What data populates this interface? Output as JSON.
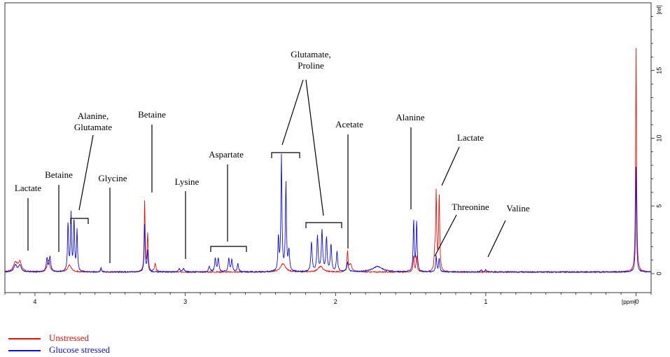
{
  "chart_data": {
    "type": "line",
    "title": "",
    "xlabel": "[ppm]",
    "ylabel": "[rel]",
    "xlim": [
      4.2,
      -0.1
    ],
    "ylim": [
      -1.4,
      20
    ],
    "x_ticks": [
      {
        "value": 4,
        "label": "4"
      },
      {
        "value": 3,
        "label": "3"
      },
      {
        "value": 2,
        "label": "2"
      },
      {
        "value": 1,
        "label": "1"
      },
      {
        "value": 0,
        "label": "-0"
      }
    ],
    "y_ticks": [
      {
        "value": 0,
        "label": "0"
      },
      {
        "value": 5,
        "label": "5"
      },
      {
        "value": 10,
        "label": "10"
      },
      {
        "value": 15,
        "label": "15"
      }
    ],
    "series": [
      {
        "name": "Unstressed",
        "color": "#e01010",
        "peaks": [
          [
            4.13,
            0.7,
            0.015
          ],
          [
            4.1,
            0.7,
            0.012
          ],
          [
            3.91,
            0.9,
            0.01
          ],
          [
            3.77,
            0.5,
            0.015
          ],
          [
            3.56,
            0.3,
            0.004
          ],
          [
            3.27,
            5.3,
            0.0035
          ],
          [
            3.25,
            2.8,
            0.004
          ],
          [
            3.2,
            0.6,
            0.006
          ],
          [
            2.35,
            0.6,
            0.02
          ],
          [
            2.1,
            0.4,
            0.02
          ],
          [
            1.92,
            1.5,
            0.004
          ],
          [
            1.9,
            0.6,
            0.01
          ],
          [
            1.48,
            1.2,
            0.004
          ],
          [
            1.46,
            1.2,
            0.004
          ],
          [
            1.33,
            5.8,
            0.004
          ],
          [
            1.31,
            5.7,
            0.004
          ],
          [
            1.34,
            1.2,
            0.004
          ],
          [
            0.0,
            16.6,
            0.0035
          ]
        ]
      },
      {
        "name": "Glucose stressed",
        "color": "#1010d0",
        "peaks": [
          [
            4.13,
            0.5,
            0.012
          ],
          [
            4.1,
            0.5,
            0.01
          ],
          [
            3.92,
            1.0,
            0.006
          ],
          [
            3.9,
            1.1,
            0.006
          ],
          [
            3.78,
            3.6,
            0.004
          ],
          [
            3.76,
            4.2,
            0.004
          ],
          [
            3.74,
            3.8,
            0.004
          ],
          [
            3.72,
            3.0,
            0.004
          ],
          [
            3.56,
            0.3,
            0.004
          ],
          [
            3.27,
            3.6,
            0.0035
          ],
          [
            3.25,
            1.6,
            0.004
          ],
          [
            3.04,
            0.25,
            0.006
          ],
          [
            3.01,
            0.25,
            0.006
          ],
          [
            2.84,
            0.4,
            0.006
          ],
          [
            2.8,
            1.0,
            0.005
          ],
          [
            2.78,
            1.0,
            0.005
          ],
          [
            2.71,
            1.0,
            0.005
          ],
          [
            2.69,
            0.9,
            0.005
          ],
          [
            2.65,
            0.6,
            0.005
          ],
          [
            2.38,
            2.5,
            0.004
          ],
          [
            2.36,
            8.5,
            0.004
          ],
          [
            2.33,
            6.5,
            0.004
          ],
          [
            2.31,
            1.5,
            0.005
          ],
          [
            2.16,
            2.2,
            0.005
          ],
          [
            2.12,
            2.6,
            0.005
          ],
          [
            2.09,
            3.0,
            0.005
          ],
          [
            2.06,
            2.5,
            0.005
          ],
          [
            2.03,
            2.0,
            0.005
          ],
          [
            1.99,
            1.5,
            0.005
          ],
          [
            1.92,
            0.7,
            0.006
          ],
          [
            1.72,
            0.4,
            0.04
          ],
          [
            1.48,
            3.8,
            0.004
          ],
          [
            1.46,
            3.7,
            0.004
          ],
          [
            1.33,
            1.2,
            0.004
          ],
          [
            1.31,
            1.0,
            0.004
          ],
          [
            1.03,
            0.15,
            0.006
          ],
          [
            1.0,
            0.15,
            0.006
          ],
          [
            0.0,
            7.8,
            0.0035
          ]
        ]
      }
    ],
    "annotations": [
      {
        "lines": [
          "Lactate"
        ],
        "x": 4.12
      },
      {
        "lines": [
          "Betaine"
        ],
        "x": 3.91
      },
      {
        "lines": [
          "Alanine,",
          "Glutamate"
        ],
        "x": 3.75
      },
      {
        "lines": [
          "Glycine"
        ],
        "x": 3.56
      },
      {
        "lines": [
          "Betaine"
        ],
        "x": 3.26
      },
      {
        "lines": [
          "Lysine"
        ],
        "x": 3.03
      },
      {
        "lines": [
          "Aspartate"
        ],
        "x": 2.75
      },
      {
        "lines": [
          "Glutamate,",
          "Proline"
        ],
        "x": 2.2
      },
      {
        "lines": [
          "Acetate"
        ],
        "x": 1.92
      },
      {
        "lines": [
          "Alanine"
        ],
        "x": 1.47
      },
      {
        "lines": [
          "Lactate"
        ],
        "x": 1.32
      },
      {
        "lines": [
          "Threonine"
        ],
        "x": 1.34
      },
      {
        "lines": [
          "Valine"
        ],
        "x": 0.98
      }
    ],
    "legend": {
      "position": "bottom-left"
    }
  }
}
